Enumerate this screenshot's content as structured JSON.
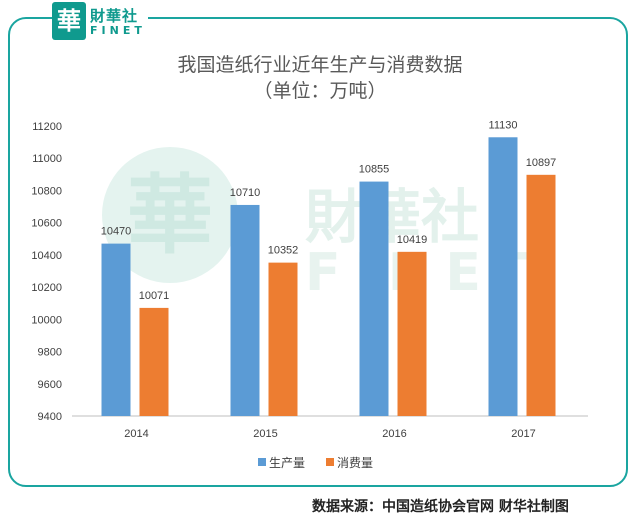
{
  "logo": {
    "badge_char": "華",
    "name_cn": "財華社",
    "name_en": "FINET"
  },
  "watermark": {
    "char": "華",
    "name_cn": "財華社",
    "name_en": "FINET"
  },
  "source_text": "数据来源：中国造纸协会官网    财华社制图",
  "colors": {
    "frame": "#1aa5a0",
    "series_production": "#5b9bd5",
    "series_consumption": "#ed7d31",
    "watermark": "#d5ece6"
  },
  "chart_data": {
    "type": "bar",
    "title": "我国造纸行业近年生产与消费数据",
    "subtitle": "（单位：万吨）",
    "categories": [
      "2014",
      "2015",
      "2016",
      "2017"
    ],
    "series": [
      {
        "name": "生产量",
        "values": [
          10470,
          10710,
          10855,
          11130
        ]
      },
      {
        "name": "消费量",
        "values": [
          10071,
          10352,
          10419,
          10897
        ]
      }
    ],
    "ylim": [
      9400,
      11200
    ],
    "yticks": [
      9400,
      9600,
      9800,
      10000,
      10200,
      10400,
      10600,
      10800,
      11000,
      11200
    ],
    "grid": false,
    "legend": "bottom",
    "data_labels": true
  }
}
